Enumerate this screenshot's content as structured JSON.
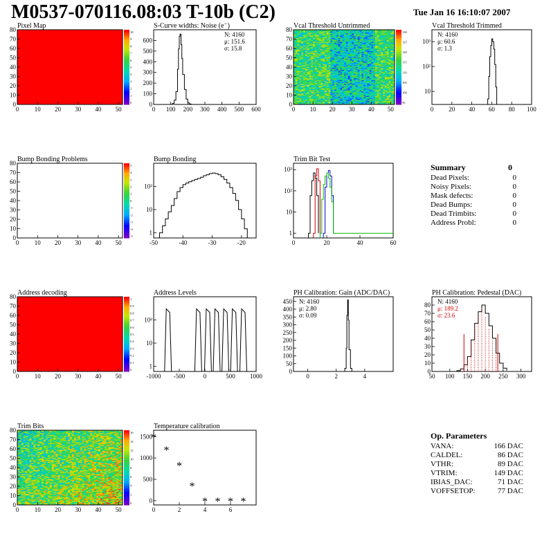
{
  "header": {
    "title": "M0537-070116.08:03 T-10b (C2)",
    "date": "Tue Jan 16 16:10:07 2007"
  },
  "colors": {
    "frame": "#000000",
    "map_red": "#ff0000",
    "red": "#cc0000",
    "blue": "#0000cc",
    "green": "#00bb00"
  },
  "chart_data": [
    {
      "id": "pixel-map",
      "type": "heatmap",
      "title": "Pixel Map",
      "fill": "#ff0000",
      "xlim": [
        0,
        52
      ],
      "ylim": [
        0,
        80
      ],
      "xticks": [
        0,
        10,
        20,
        30,
        40,
        50
      ],
      "yticks": [
        0,
        10,
        20,
        30,
        40,
        50,
        60,
        70,
        80
      ],
      "palette_labels": [
        "10",
        "9",
        "8",
        "7",
        "6",
        "5",
        "4",
        "3",
        "2",
        "1",
        "0"
      ]
    },
    {
      "id": "scurve-noise",
      "type": "line",
      "title": "S-Curve widths: Noise (e⁻)",
      "xlim": [
        0,
        600
      ],
      "ylim": [
        0,
        700
      ],
      "xticks": [
        0,
        100,
        200,
        300,
        400,
        500,
        600
      ],
      "yticks": [
        0,
        100,
        200,
        300,
        400,
        500,
        600
      ],
      "stats": [
        "N: 4160",
        "μ: 151.6",
        "σ: 15.8"
      ],
      "series": [
        {
          "x": [
            0,
            100,
            110,
            120,
            130,
            140,
            145,
            150,
            155,
            160,
            165,
            170,
            180,
            190,
            200,
            210,
            220,
            600
          ],
          "y": [
            0,
            0,
            10,
            40,
            120,
            330,
            520,
            640,
            660,
            560,
            430,
            280,
            140,
            50,
            15,
            4,
            0,
            0
          ]
        }
      ]
    },
    {
      "id": "vcal-untrimmed",
      "type": "heatmap",
      "title": "Vcal Threshold Untrimmed",
      "xlim": [
        0,
        52
      ],
      "ylim": [
        0,
        80
      ],
      "xticks": [
        0,
        10,
        20,
        30,
        40,
        50
      ],
      "yticks": [
        0,
        10,
        20,
        30,
        40,
        50,
        60,
        70,
        80
      ],
      "palette_labels": [
        "130",
        "125",
        "120",
        "115",
        "110",
        "105",
        "100",
        "95"
      ]
    },
    {
      "id": "vcal-trimmed",
      "type": "line",
      "title": "Vcal Threshold Trimmed",
      "xlim": [
        0,
        100
      ],
      "ylim": [
        3,
        3000
      ],
      "yscale": "log",
      "xticks": [
        0,
        20,
        40,
        60,
        80,
        100
      ],
      "yticks": [
        10,
        100,
        1000
      ],
      "ytick_labels": [
        "10",
        "10²",
        "10³"
      ],
      "stats": [
        "N: 4160",
        "μ: 60.6",
        "σ: 1.3"
      ],
      "series": [
        {
          "x": [
            56,
            57,
            58,
            59,
            60,
            61,
            62,
            63,
            64,
            65
          ],
          "y": [
            5,
            40,
            250,
            700,
            1300,
            1000,
            500,
            120,
            15,
            3
          ]
        }
      ]
    },
    {
      "id": "bump-problems",
      "type": "heatmap",
      "title": "Bump Bonding Problems",
      "xlim": [
        0,
        52
      ],
      "ylim": [
        0,
        80
      ],
      "xticks": [
        0,
        10,
        20,
        30,
        40,
        50
      ],
      "yticks": [
        0,
        10,
        20,
        30,
        40,
        50,
        60,
        70,
        80
      ],
      "palette_labels": [
        "5",
        "4",
        "3",
        "2",
        "1",
        "0",
        "-1",
        "-2",
        "-3",
        "-4",
        "-5"
      ]
    },
    {
      "id": "bump-bonding",
      "type": "line",
      "title": "Bump Bonding",
      "xlim": [
        -50,
        -15
      ],
      "ylim": [
        0.6,
        1000
      ],
      "yscale": "log",
      "xticks": [
        -50,
        -40,
        -30,
        -20
      ],
      "yticks": [
        1,
        10,
        100
      ],
      "ytick_labels": [
        "1",
        "10",
        "10²"
      ],
      "series": [
        {
          "x": [
            -48,
            -47,
            -46,
            -45,
            -44,
            -43,
            -42,
            -41,
            -40,
            -39,
            -38,
            -37,
            -36,
            -35,
            -34,
            -33,
            -32,
            -31,
            -30,
            -29,
            -28,
            -27,
            -26,
            -25,
            -24,
            -23,
            -22,
            -21,
            -20,
            -19,
            -18
          ],
          "y": [
            1,
            2,
            4,
            8,
            15,
            30,
            60,
            90,
            120,
            140,
            160,
            180,
            200,
            220,
            250,
            290,
            320,
            360,
            380,
            360,
            320,
            260,
            200,
            140,
            90,
            50,
            25,
            10,
            4,
            1.5,
            0.6
          ]
        }
      ]
    },
    {
      "id": "trim-bit-test",
      "type": "line",
      "title": "Trim Bit Test",
      "xlim": [
        0,
        60
      ],
      "ylim": [
        0.6,
        2000
      ],
      "yscale": "log",
      "xticks": [
        0,
        20,
        40,
        60
      ],
      "yticks": [
        1,
        10,
        100,
        1000
      ],
      "ytick_labels": [
        "1",
        "10",
        "10²",
        "10³"
      ],
      "series": [
        {
          "color": "#000000",
          "x": [
            9,
            10,
            11,
            12,
            13,
            14,
            15
          ],
          "y": [
            1,
            60,
            300,
            700,
            400,
            60,
            1
          ]
        },
        {
          "color": "#cc0000",
          "x": [
            12,
            13,
            14,
            15,
            16
          ],
          "y": [
            1,
            500,
            1100,
            300,
            1
          ]
        },
        {
          "color": "#0000cc",
          "x": [
            18,
            19,
            20,
            21,
            22,
            23,
            24
          ],
          "y": [
            1,
            150,
            700,
            900,
            500,
            60,
            1
          ]
        },
        {
          "color": "#00bb00",
          "x": [
            16,
            17,
            18,
            19,
            20,
            21,
            22,
            23,
            24,
            25,
            60
          ],
          "y": [
            1,
            40,
            200,
            500,
            700,
            400,
            150,
            30,
            1,
            1,
            1
          ]
        }
      ]
    },
    {
      "id": "address-decoding",
      "type": "heatmap",
      "title": "Address decoding",
      "fill": "#ff0000",
      "xlim": [
        0,
        52
      ],
      "ylim": [
        0,
        80
      ],
      "xticks": [
        0,
        10,
        20,
        30,
        40,
        50
      ],
      "yticks": [
        0,
        10,
        20,
        30,
        40,
        50,
        60,
        70,
        80
      ],
      "palette_labels": [
        "1",
        "0.9",
        "0.8",
        "0.7",
        "0.6",
        "0.5",
        "0.4",
        "0.3",
        "0.2",
        "0.1",
        "0"
      ]
    },
    {
      "id": "address-levels",
      "type": "line",
      "title": "Address Levels",
      "xlim": [
        -1000,
        1000
      ],
      "ylim": [
        0.6,
        1000
      ],
      "yscale": "log",
      "xticks": [
        -1000,
        -500,
        0,
        500,
        1000
      ],
      "yticks": [
        1,
        10,
        100
      ],
      "ytick_labels": [
        "1",
        "10",
        "10²"
      ],
      "peaks": [
        {
          "x": -720,
          "y": 300
        },
        {
          "x": -130,
          "y": 300
        },
        {
          "x": 60,
          "y": 300
        },
        {
          "x": 230,
          "y": 300
        },
        {
          "x": 400,
          "y": 300
        },
        {
          "x": 570,
          "y": 300
        },
        {
          "x": 750,
          "y": 300
        }
      ]
    },
    {
      "id": "ph-gain",
      "type": "line",
      "title": "PH Calibration: Gain (ADC/DAC)",
      "xlim": [
        -1,
        6
      ],
      "ylim": [
        0,
        480
      ],
      "xticks": [
        0,
        2,
        4
      ],
      "yticks": [
        0,
        50,
        100,
        150,
        200,
        250,
        300,
        350,
        400,
        450
      ],
      "stats": [
        "N: 4160",
        "μ: 2.80",
        "σ: 0.09"
      ],
      "series": [
        {
          "x": [
            -1,
            2.5,
            2.6,
            2.7,
            2.75,
            2.8,
            2.85,
            2.9,
            3.0,
            3.1,
            6
          ],
          "y": [
            0,
            0,
            20,
            150,
            360,
            460,
            330,
            140,
            20,
            0,
            0
          ]
        }
      ]
    },
    {
      "id": "ph-pedestal",
      "type": "line",
      "title": "PH Calibration: Pedestal (DAC)",
      "xlim": [
        50,
        330
      ],
      "ylim": [
        0,
        90
      ],
      "xticks": [
        50,
        100,
        150,
        200,
        250,
        300
      ],
      "yticks": [
        0,
        10,
        20,
        30,
        40,
        50,
        60,
        70,
        80
      ],
      "stats": [
        "N: 4160",
        "μ: 189.2",
        "σ: 23.6"
      ],
      "stat_colors": [
        "#000000",
        "#cc0000",
        "#cc0000"
      ],
      "fit_range": [
        140,
        235
      ],
      "series": [
        {
          "x": [
            120,
            130,
            140,
            150,
            160,
            170,
            180,
            190,
            200,
            210,
            220,
            230,
            240,
            250,
            260
          ],
          "y": [
            1,
            3,
            8,
            18,
            38,
            58,
            72,
            80,
            70,
            55,
            40,
            22,
            10,
            4,
            1
          ]
        }
      ]
    },
    {
      "id": "trim-bits",
      "type": "heatmap",
      "title": "Trim Bits",
      "xlim": [
        0,
        52
      ],
      "ylim": [
        0,
        80
      ],
      "xticks": [
        0,
        10,
        20,
        30,
        40,
        50
      ],
      "yticks": [
        0,
        10,
        20,
        30,
        40,
        50,
        60,
        70,
        80
      ],
      "palette_labels": [
        "16",
        "14",
        "12",
        "10",
        "8",
        "6",
        "4",
        "2",
        "0"
      ]
    },
    {
      "id": "temperature-calibration",
      "type": "scatter",
      "title": "Temperature calibration",
      "xlim": [
        0,
        8
      ],
      "ylim": [
        -100,
        1650
      ],
      "xticks": [
        0,
        2,
        4,
        6
      ],
      "yticks": [
        0,
        500,
        1000,
        1500
      ],
      "series": [
        {
          "x": [
            0,
            1,
            2,
            3,
            4,
            5,
            6,
            7
          ],
          "y": [
            1500,
            1200,
            830,
            350,
            0,
            0,
            0,
            0
          ]
        }
      ]
    }
  ],
  "summary": {
    "title": "Summary",
    "value": "0",
    "rows": [
      {
        "label": "Dead Pixels:",
        "value": "0"
      },
      {
        "label": "Noisy Pixels:",
        "value": "0"
      },
      {
        "label": "Mask defects:",
        "value": "0"
      },
      {
        "label": "Dead Bumps:",
        "value": "0"
      },
      {
        "label": "Dead Trimbits:",
        "value": "0"
      },
      {
        "label": "Address Probl:",
        "value": "0"
      }
    ]
  },
  "op_parameters": {
    "title": "Op. Parameters",
    "rows": [
      {
        "label": "VANA:",
        "value": "166 DAC"
      },
      {
        "label": "CALDEL:",
        "value": "86 DAC"
      },
      {
        "label": "VTHR:",
        "value": "89 DAC"
      },
      {
        "label": "VTRIM:",
        "value": "149 DAC"
      },
      {
        "label": "IBIAS_DAC:",
        "value": "71 DAC"
      },
      {
        "label": "VOFFSETOP:",
        "value": "77 DAC"
      }
    ]
  }
}
